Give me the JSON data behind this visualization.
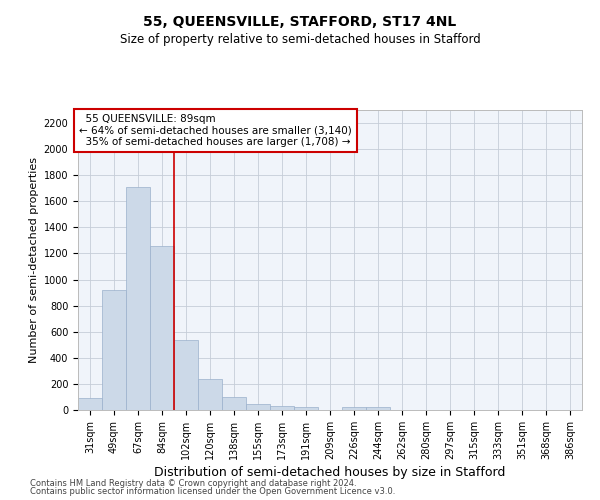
{
  "title": "55, QUEENSVILLE, STAFFORD, ST17 4NL",
  "subtitle": "Size of property relative to semi-detached houses in Stafford",
  "xlabel": "Distribution of semi-detached houses by size in Stafford",
  "ylabel": "Number of semi-detached properties",
  "footnote1": "Contains HM Land Registry data © Crown copyright and database right 2024.",
  "footnote2": "Contains public sector information licensed under the Open Government Licence v3.0.",
  "property_label": "55 QUEENSVILLE: 89sqm",
  "pct_smaller": 64,
  "pct_larger": 35,
  "n_smaller": 3140,
  "n_larger": 1708,
  "bar_color": "#ccd9e8",
  "bar_edge_color": "#9ab0cc",
  "line_color": "#cc0000",
  "annotation_box_color": "#cc0000",
  "grid_color": "#c5cdd8",
  "background_color": "#f0f4fa",
  "categories": [
    "31sqm",
    "49sqm",
    "67sqm",
    "84sqm",
    "102sqm",
    "120sqm",
    "138sqm",
    "155sqm",
    "173sqm",
    "191sqm",
    "209sqm",
    "226sqm",
    "244sqm",
    "262sqm",
    "280sqm",
    "297sqm",
    "315sqm",
    "333sqm",
    "351sqm",
    "368sqm",
    "386sqm"
  ],
  "values": [
    95,
    920,
    1710,
    1260,
    540,
    235,
    100,
    45,
    30,
    25,
    0,
    25,
    25,
    0,
    0,
    0,
    0,
    0,
    0,
    0,
    0
  ],
  "ylim": [
    0,
    2300
  ],
  "yticks": [
    0,
    200,
    400,
    600,
    800,
    1000,
    1200,
    1400,
    1600,
    1800,
    2000,
    2200
  ],
  "vline_x_index": 3.5,
  "title_fontsize": 10,
  "subtitle_fontsize": 8.5,
  "ylabel_fontsize": 8,
  "xlabel_fontsize": 9,
  "tick_fontsize": 7,
  "annotation_fontsize": 7.5,
  "footnote_fontsize": 6
}
